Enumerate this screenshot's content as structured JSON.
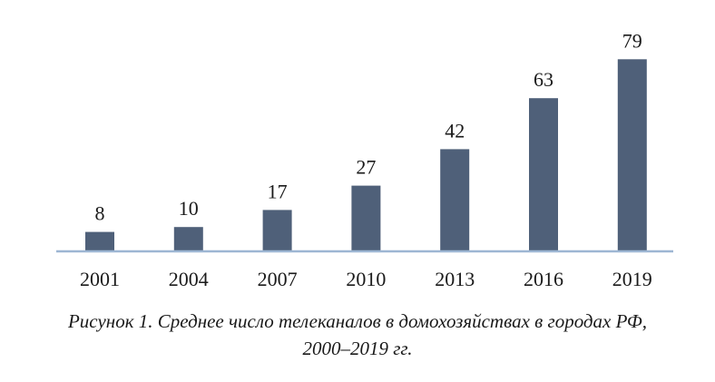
{
  "chart_data": {
    "type": "bar",
    "categories": [
      "2001",
      "2004",
      "2007",
      "2010",
      "2013",
      "2016",
      "2019"
    ],
    "values": [
      8,
      10,
      17,
      27,
      42,
      63,
      79
    ],
    "data_labels": [
      "8",
      "10",
      "17",
      "27",
      "42",
      "63",
      "79"
    ],
    "ylim": [
      0,
      80
    ],
    "grid": false,
    "legend": "none",
    "bar_color": "#4f6079",
    "axis_color": "#9db6d3"
  },
  "caption": {
    "line1": "Рисунок 1. Среднее число телеканалов в домохозяйствах в городах РФ,",
    "line2": "2000–2019 гг."
  }
}
